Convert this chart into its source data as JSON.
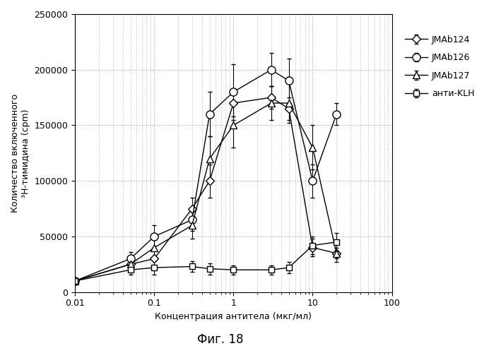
{
  "title": "Фиг. 18",
  "xlabel": "Концентрация антитела (мкг/мл)",
  "ylabel_line1": "Количество включенного",
  "ylabel_line2": "³H-тимидина (cpm)",
  "xlim": [
    0.01,
    100
  ],
  "ylim": [
    0,
    250000
  ],
  "yticks": [
    0,
    50000,
    100000,
    150000,
    200000,
    250000
  ],
  "series": {
    "JMAb124": {
      "x": [
        0.01,
        0.05,
        0.1,
        0.3,
        0.5,
        1.0,
        3.0,
        5.0,
        10.0,
        20.0
      ],
      "y": [
        10000,
        25000,
        30000,
        75000,
        100000,
        170000,
        175000,
        165000,
        40000,
        35000
      ],
      "yerr": [
        2000,
        5000,
        8000,
        10000,
        15000,
        12000,
        10000,
        10000,
        8000,
        5000
      ],
      "marker": "D",
      "color": "#000000",
      "linestyle": "-"
    },
    "JMAb126": {
      "x": [
        0.01,
        0.05,
        0.1,
        0.3,
        0.5,
        1.0,
        3.0,
        5.0,
        10.0,
        20.0
      ],
      "y": [
        10000,
        30000,
        50000,
        65000,
        160000,
        180000,
        200000,
        190000,
        100000,
        160000
      ],
      "yerr": [
        2000,
        6000,
        10000,
        10000,
        20000,
        25000,
        15000,
        20000,
        15000,
        10000
      ],
      "marker": "o",
      "color": "#000000",
      "linestyle": "-"
    },
    "JMAb127": {
      "x": [
        0.01,
        0.05,
        0.1,
        0.3,
        0.5,
        1.0,
        3.0,
        5.0,
        10.0,
        20.0
      ],
      "y": [
        10000,
        25000,
        40000,
        60000,
        120000,
        150000,
        170000,
        170000,
        130000,
        35000
      ],
      "yerr": [
        2000,
        5000,
        8000,
        12000,
        20000,
        20000,
        15000,
        18000,
        20000,
        8000
      ],
      "marker": "^",
      "color": "#000000",
      "linestyle": "-"
    },
    "анти-KLH": {
      "x": [
        0.01,
        0.05,
        0.1,
        0.3,
        0.5,
        1.0,
        3.0,
        5.0,
        10.0,
        20.0
      ],
      "y": [
        10000,
        20000,
        22000,
        23000,
        21000,
        20000,
        20000,
        22000,
        42000,
        45000
      ],
      "yerr": [
        2000,
        4000,
        6000,
        5000,
        5000,
        4000,
        4000,
        5000,
        8000,
        8000
      ],
      "marker": "s",
      "color": "#000000",
      "linestyle": "-"
    }
  },
  "background_color": "#ffffff",
  "grid_color": "#999999",
  "label_fontsize": 9,
  "tick_fontsize": 9,
  "title_fontsize": 12
}
